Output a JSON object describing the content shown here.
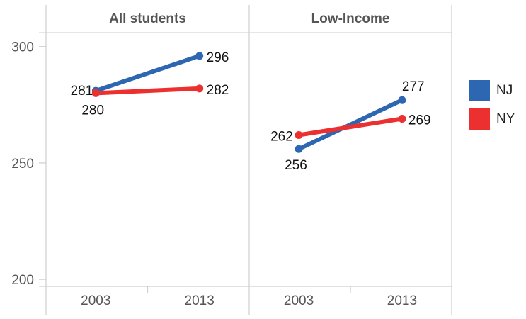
{
  "chart_data": {
    "type": "line",
    "y_ticks": [
      200,
      250,
      300
    ],
    "ylim": [
      197,
      306
    ],
    "x_categories": [
      "2003",
      "2013"
    ],
    "legend_position": "right",
    "series_colors": {
      "NJ": "#2e67b1",
      "NY": "#ec2f2f"
    },
    "legend": [
      {
        "name": "NJ",
        "color": "#2e67b1"
      },
      {
        "name": "NY",
        "color": "#ec2f2f"
      }
    ],
    "panels": [
      {
        "title": "All students",
        "series": [
          {
            "name": "NJ",
            "x": [
              "2003",
              "2013"
            ],
            "values": [
              281,
              296
            ]
          },
          {
            "name": "NY",
            "x": [
              "2003",
              "2013"
            ],
            "values": [
              280,
              282
            ]
          }
        ]
      },
      {
        "title": "Low-Income",
        "series": [
          {
            "name": "NJ",
            "x": [
              "2003",
              "2013"
            ],
            "values": [
              256,
              277
            ]
          },
          {
            "name": "NY",
            "x": [
              "2003",
              "2013"
            ],
            "values": [
              262,
              269
            ]
          }
        ]
      }
    ]
  }
}
